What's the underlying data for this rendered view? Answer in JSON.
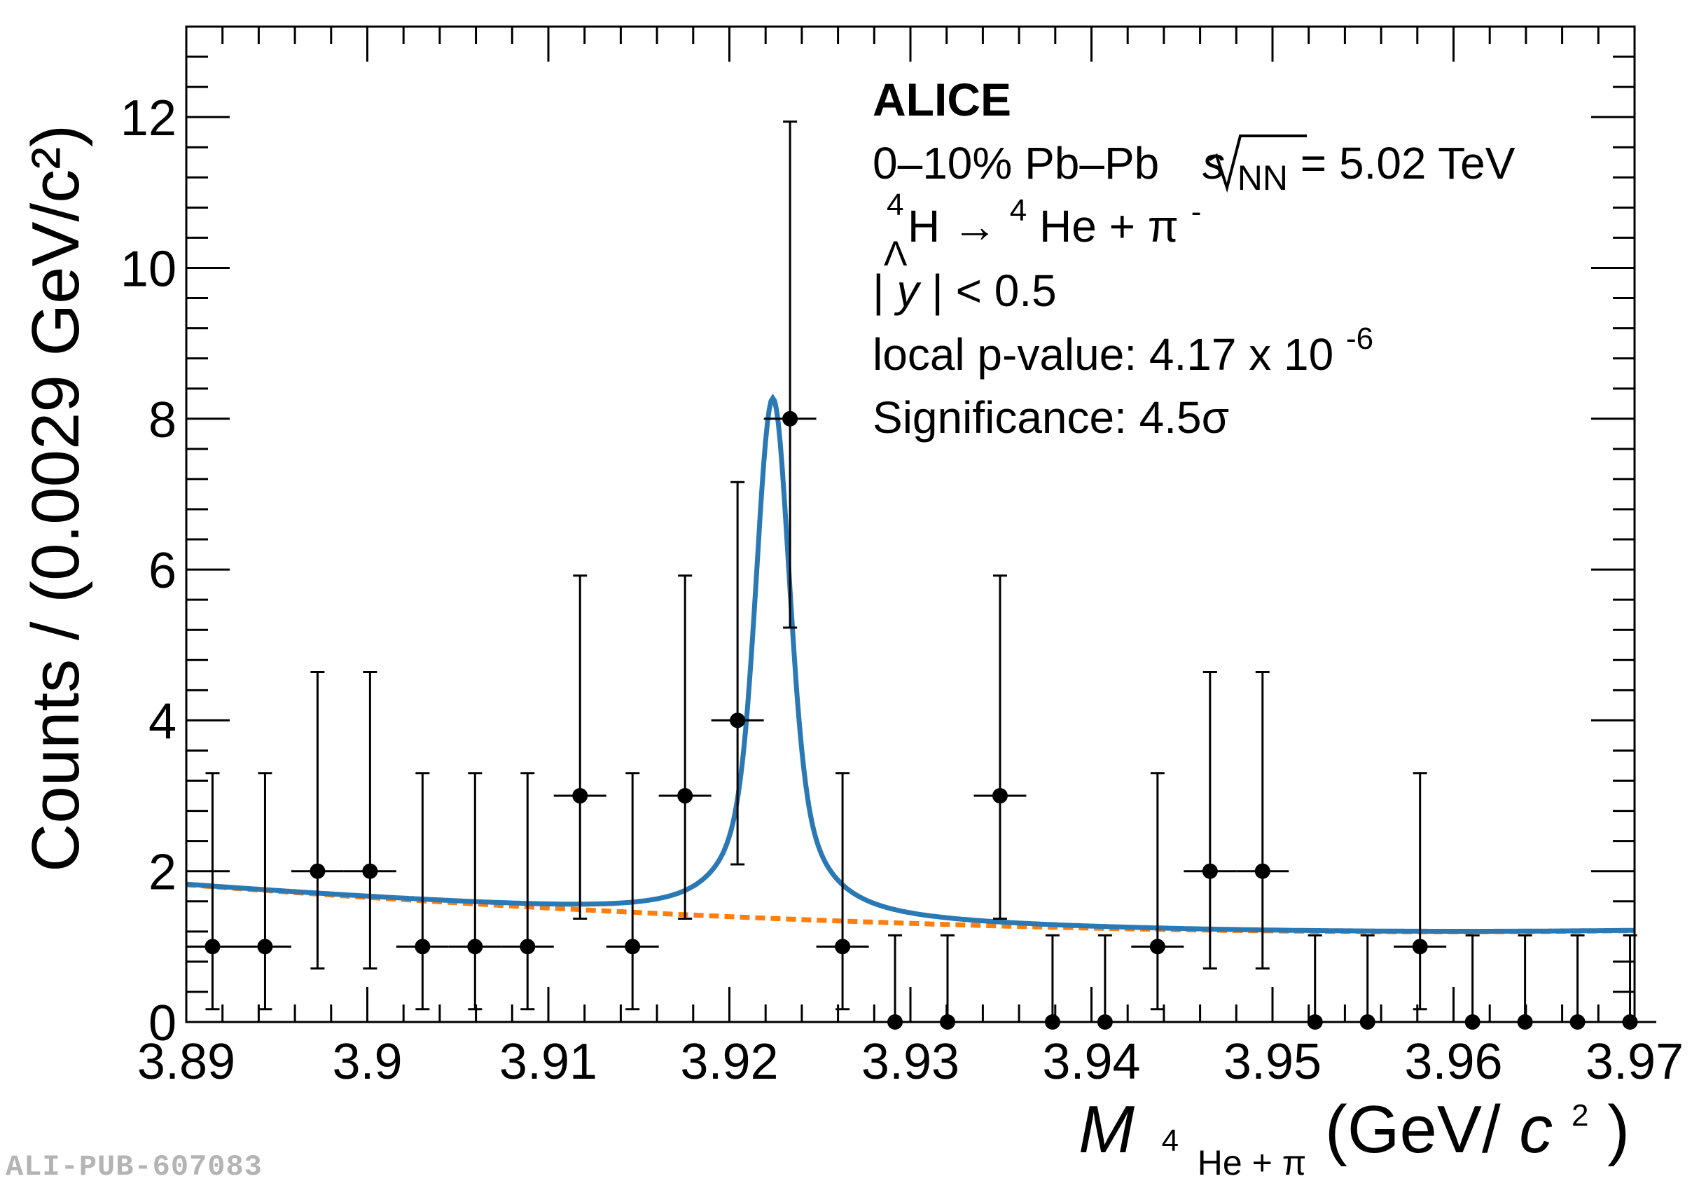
{
  "chart_data": {
    "type": "scatter",
    "xlim": [
      3.89,
      3.97
    ],
    "ylim": [
      0,
      13.2
    ],
    "x_ticks": [
      "3.89",
      "3.9",
      "3.91",
      "3.92",
      "3.93",
      "3.94",
      "3.95",
      "3.96",
      "3.97"
    ],
    "y_ticks": [
      "0",
      "2",
      "4",
      "6",
      "8",
      "10",
      "12"
    ],
    "ylabel": "Counts / (0.0029 GeV/c²)",
    "xlabel": {
      "symbol": "M",
      "subscript_sup": "4",
      "subscript": "He + π",
      "unit_open": " (GeV/",
      "unit_c": "c",
      "unit_sup": "2",
      "unit_close": ")"
    },
    "bin_half_width": 0.00145,
    "data_series": {
      "x": [
        3.89145,
        3.89435,
        3.89725,
        3.90015,
        3.90305,
        3.90595,
        3.90885,
        3.91175,
        3.91465,
        3.91755,
        3.92045,
        3.92335,
        3.92625,
        3.92915,
        3.93205,
        3.93495,
        3.93785,
        3.94075,
        3.94365,
        3.94655,
        3.94945,
        3.95235,
        3.95525,
        3.95815,
        3.96105,
        3.96395,
        3.96685,
        3.96975
      ],
      "y": [
        1,
        1,
        2,
        2,
        1,
        1,
        1,
        3,
        1,
        3,
        4,
        8,
        1,
        0,
        0,
        3,
        0,
        0,
        1,
        2,
        2,
        0,
        0,
        1,
        0,
        0,
        0,
        0
      ],
      "err_low": [
        0.83,
        0.83,
        1.29,
        1.29,
        0.83,
        0.83,
        0.83,
        1.63,
        0.83,
        1.63,
        1.91,
        2.77,
        0.83,
        0,
        0,
        1.63,
        0,
        0,
        0.83,
        1.29,
        1.29,
        0,
        0,
        0.83,
        0,
        0,
        0,
        0
      ],
      "err_high": [
        2.3,
        2.3,
        2.64,
        2.64,
        2.3,
        2.3,
        2.3,
        2.92,
        2.3,
        2.92,
        3.16,
        3.94,
        2.3,
        1.15,
        1.15,
        2.92,
        1.15,
        1.15,
        2.3,
        2.64,
        2.64,
        1.15,
        1.15,
        2.3,
        1.15,
        1.15,
        1.15,
        1.15
      ]
    },
    "fit": {
      "color": "#2a78b4",
      "background_color": "#ff7f0e",
      "background": {
        "x0": 3.89,
        "y_at_x0": 1.82,
        "slope_per_gev": -18.0,
        "curvature": 130
      },
      "peak": {
        "mean": 3.9224,
        "sigma": 0.00085,
        "gamma": 0.00165,
        "amplitude": 6.9
      }
    },
    "annotations": {
      "experiment": "ALICE",
      "collision_prefix": "0–10% Pb–Pb ",
      "collision_s": "s",
      "collision_sub": "NN",
      "collision_suffix": " = 5.02 TeV",
      "decay_sup": "4",
      "decay_sub": "Λ",
      "decay_main": "H →  ",
      "decay_sup2": "4",
      "decay_rest": "He + π",
      "decay_charge": "-",
      "rapidity_bar1": "|",
      "rapidity_y": "y",
      "rapidity_rest": "| < 0.5",
      "pvalue": "local p-value: 4.17 x 10",
      "pvalue_exp": "-6",
      "significance": "Significance: 4.5σ"
    }
  },
  "footer": {
    "pub_id": "ALI-PUB-607083"
  }
}
